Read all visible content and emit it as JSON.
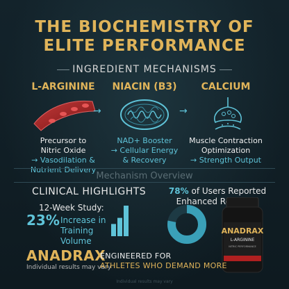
{
  "title_line1": "THE BIOCHEMISTRY OF",
  "title_line2": "ELITE PERFORMANCE",
  "section_heading": "INGREDIENT MECHANISMS",
  "ingredients": [
    {
      "name": "L-ARGININE",
      "desc_line1": "Precursor to",
      "desc_line2": "Nitric Oxide",
      "effect_line1": "→ Vasodilation &",
      "effect_line2": "Nutrient Delivery",
      "icon": "blood-vessel-icon"
    },
    {
      "name": "NIACIN (B3)",
      "desc_line1": "NAD+ Booster",
      "desc_line2": "→ Cellular Energy",
      "effect_line1": "& Recovery",
      "effect_line2": "",
      "icon": "mitochondria-icon"
    },
    {
      "name": "CALCIUM",
      "desc_line1": "Muscle Contraction",
      "desc_line2": "Optimization",
      "effect_line1": "→ Strength Output",
      "effect_line2": "",
      "icon": "synapse-icon"
    }
  ],
  "mechanism_overview": "Mechanism Overview",
  "clinical": {
    "heading": "CLINICAL HIGHLIGHTS",
    "study": "12-Week Study:",
    "percent": "23%",
    "percent_text_line1": "Increase in",
    "percent_text_line2": "Training Volume",
    "bar_levels": [
      0.4,
      0.6,
      1.0
    ]
  },
  "users": {
    "percent": "78%",
    "text_line1": "of Users Reported",
    "text_line2": "Enhanced Recovery",
    "donut_fraction": 0.78
  },
  "product": {
    "brand": "ANADRAX",
    "label_sub": "L-ARGININE",
    "label_small": "NITRIC PERFORMANCE"
  },
  "footer": {
    "brand": "ANADRAX",
    "disclaimer": "Individual results may vary",
    "tag_line1": "ENGINEERED FOR",
    "tag_line2": "ATHLETES WHO DEMAND MORE",
    "watermark": "Individual results may vary"
  },
  "colors": {
    "gold": "#e0b45a",
    "blue": "#5fc3d8",
    "background": "#0f1b22"
  }
}
